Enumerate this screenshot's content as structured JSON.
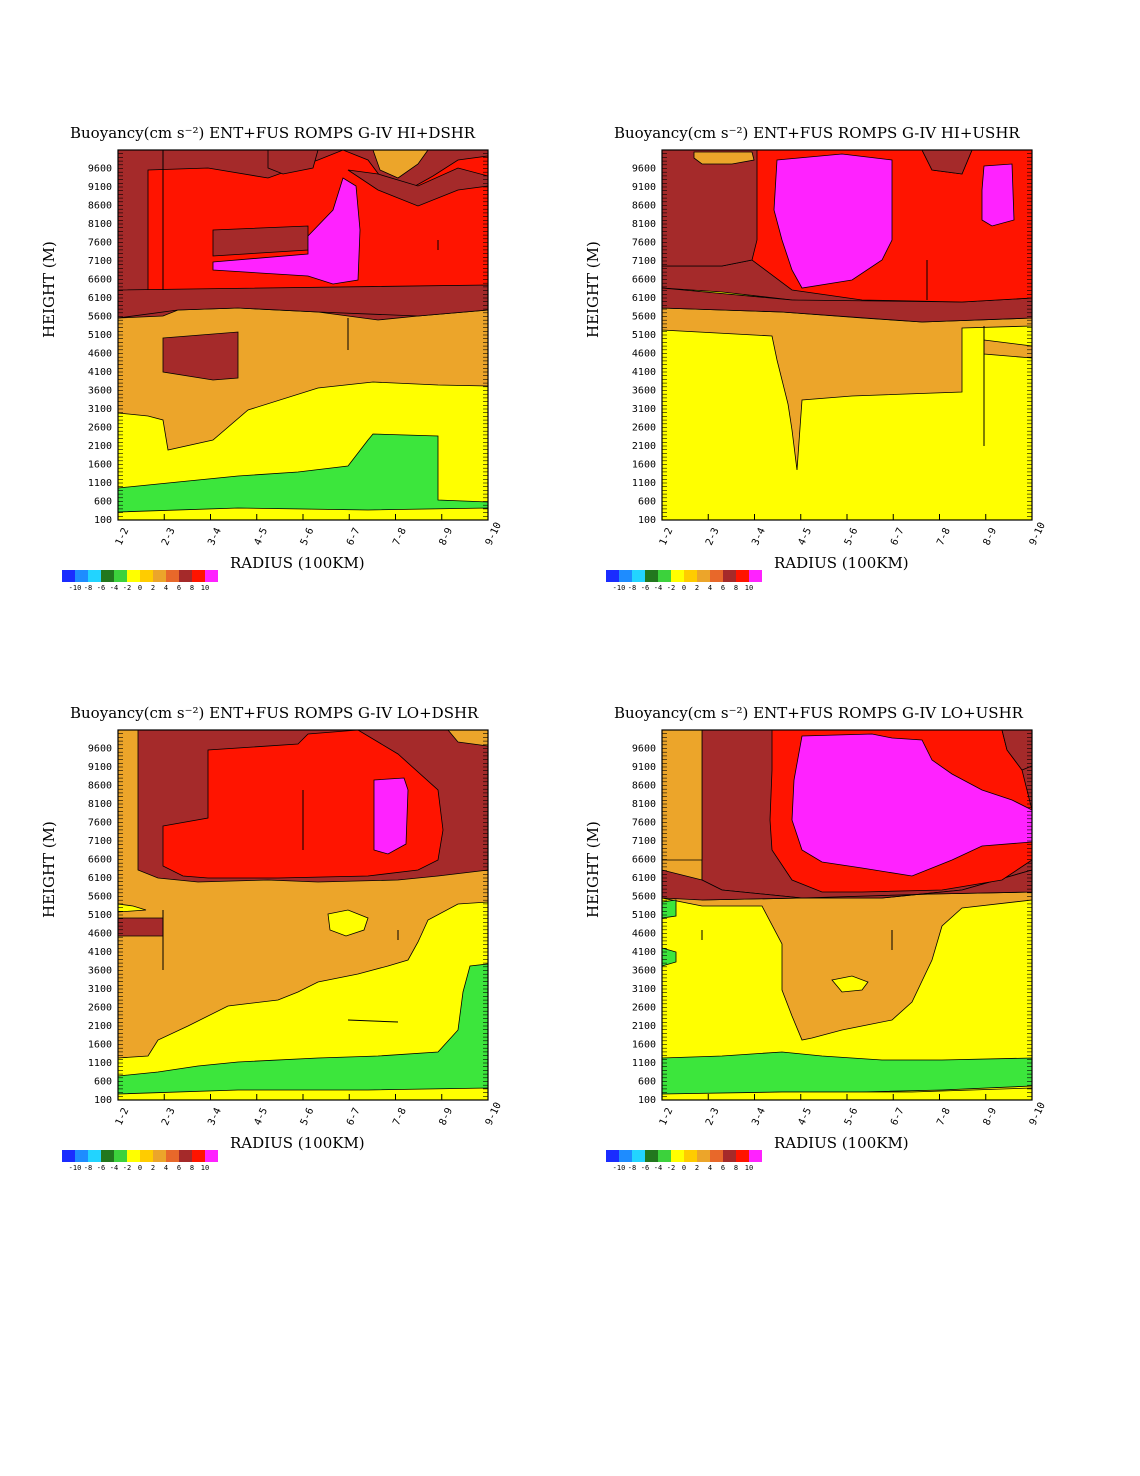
{
  "colorbar": {
    "labels": [
      "-10",
      "-8",
      "-6",
      "-4",
      "-2",
      "0",
      "2",
      "4",
      "6",
      "8",
      "10"
    ],
    "colors": [
      "#1a2cff",
      "#1e8cff",
      "#22d4ff",
      "#22771e",
      "#3cd23c",
      "#ffff00",
      "#ffcc00",
      "#eca52a",
      "#e8682a",
      "#a52a2a",
      "#ff1400",
      "#ff22ff"
    ]
  },
  "levels": {
    "l0": "#3ce63c",
    "l2": "#ffff00",
    "l4": "#eca52a",
    "l6": "#a52a2a",
    "l8": "#ff1400",
    "l10": "#ff22ff"
  },
  "chart_data": [
    {
      "type": "heatmap",
      "title": "Buoyancy(cm s⁻²)   ENT+FUS ROMPS G-IV HI+DSHR",
      "xlabel": "RADIUS (100KM)",
      "ylabel": "HEIGHT (M)",
      "x_ticks": [
        "1-2",
        "2-3",
        "3-4",
        "4-5",
        "5-6",
        "6-7",
        "7-8",
        "8-9",
        "9-10"
      ],
      "y_ticks": [
        "100",
        "600",
        "1100",
        "1600",
        "2100",
        "2600",
        "3100",
        "3600",
        "4100",
        "4600",
        "5100",
        "5600",
        "6100",
        "6600",
        "7100",
        "7600",
        "8100",
        "8600",
        "9100",
        "9600"
      ],
      "ylim": [
        100,
        10100
      ],
      "units": "cm s⁻²",
      "colorbar_ticks": [
        -10,
        -8,
        -6,
        -4,
        -2,
        0,
        2,
        4,
        6,
        8,
        10
      ]
    },
    {
      "type": "heatmap",
      "title": "Buoyancy(cm s⁻²)   ENT+FUS ROMPS G-IV HI+USHR",
      "xlabel": "RADIUS (100KM)",
      "ylabel": "HEIGHT (M)",
      "x_ticks": [
        "1-2",
        "2-3",
        "3-4",
        "4-5",
        "5-6",
        "6-7",
        "7-8",
        "8-9",
        "9-10"
      ],
      "y_ticks": [
        "100",
        "600",
        "1100",
        "1600",
        "2100",
        "2600",
        "3100",
        "3600",
        "4100",
        "4600",
        "5100",
        "5600",
        "6100",
        "6600",
        "7100",
        "7600",
        "8100",
        "8600",
        "9100",
        "9600"
      ],
      "ylim": [
        100,
        10100
      ],
      "units": "cm s⁻²",
      "colorbar_ticks": [
        -10,
        -8,
        -6,
        -4,
        -2,
        0,
        2,
        4,
        6,
        8,
        10
      ]
    },
    {
      "type": "heatmap",
      "title": "Buoyancy(cm s⁻²)   ENT+FUS ROMPS G-IV LO+DSHR",
      "xlabel": "RADIUS (100KM)",
      "ylabel": "HEIGHT (M)",
      "x_ticks": [
        "1-2",
        "2-3",
        "3-4",
        "4-5",
        "5-6",
        "6-7",
        "7-8",
        "8-9",
        "9-10"
      ],
      "y_ticks": [
        "100",
        "600",
        "1100",
        "1600",
        "2100",
        "2600",
        "3100",
        "3600",
        "4100",
        "4600",
        "5100",
        "5600",
        "6100",
        "6600",
        "7100",
        "7600",
        "8100",
        "8600",
        "9100",
        "9600"
      ],
      "ylim": [
        100,
        10100
      ],
      "units": "cm s⁻²",
      "colorbar_ticks": [
        -10,
        -8,
        -6,
        -4,
        -2,
        0,
        2,
        4,
        6,
        8,
        10
      ]
    },
    {
      "type": "heatmap",
      "title": "Buoyancy(cm s⁻²)   ENT+FUS ROMPS G-IV LO+USHR",
      "xlabel": "RADIUS (100KM)",
      "ylabel": "HEIGHT (M)",
      "x_ticks": [
        "1-2",
        "2-3",
        "3-4",
        "4-5",
        "5-6",
        "6-7",
        "7-8",
        "8-9",
        "9-10"
      ],
      "y_ticks": [
        "100",
        "600",
        "1100",
        "1600",
        "2100",
        "2600",
        "3100",
        "3600",
        "4100",
        "4600",
        "5100",
        "5600",
        "6100",
        "6600",
        "7100",
        "7600",
        "8100",
        "8600",
        "9100",
        "9600"
      ],
      "ylim": [
        100,
        10100
      ],
      "units": "cm s⁻²",
      "colorbar_ticks": [
        -10,
        -8,
        -6,
        -4,
        -2,
        0,
        2,
        4,
        6,
        8,
        10
      ]
    }
  ]
}
